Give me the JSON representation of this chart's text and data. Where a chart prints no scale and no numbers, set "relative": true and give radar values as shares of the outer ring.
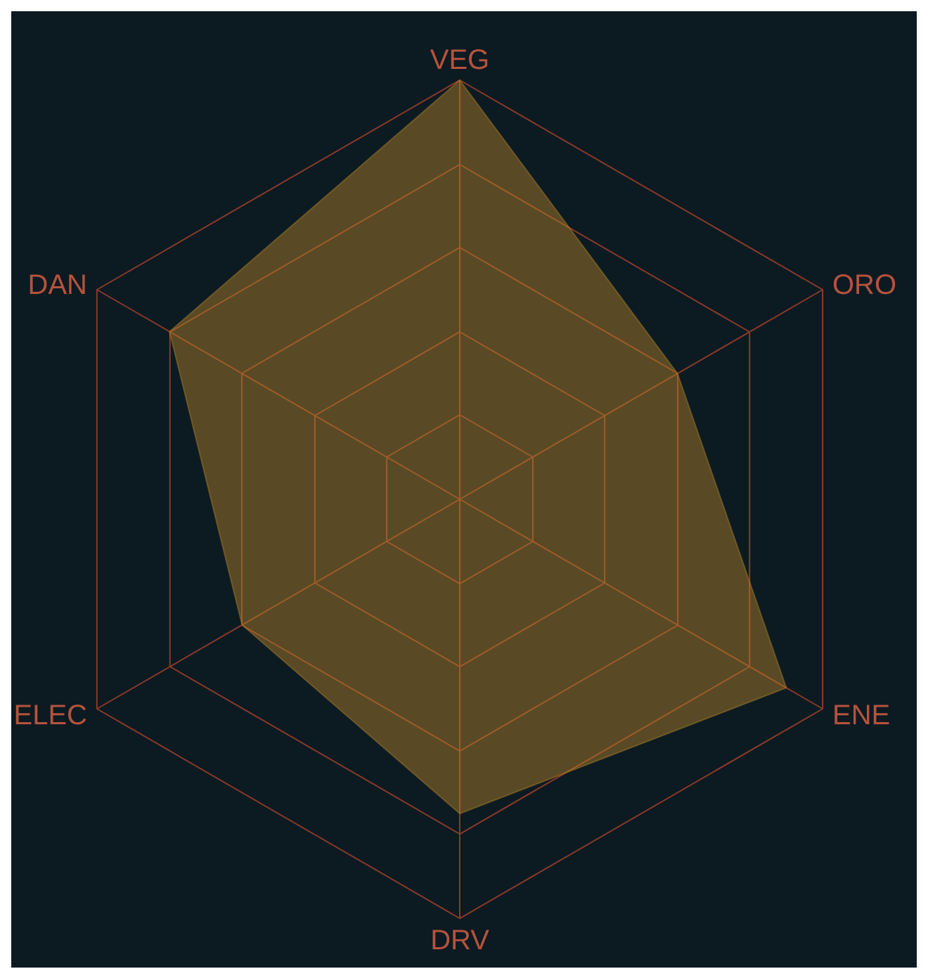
{
  "chart_data": {
    "type": "radar",
    "categories": [
      "VEG",
      "ORO",
      "ENE",
      "DRV",
      "ELEC",
      "DAN"
    ],
    "relative": true,
    "grid": true,
    "series": [
      {
        "color": "#b8862b",
        "values": [
          1.0,
          0.6,
          0.9,
          0.75,
          0.6,
          0.8
        ]
      }
    ]
  }
}
